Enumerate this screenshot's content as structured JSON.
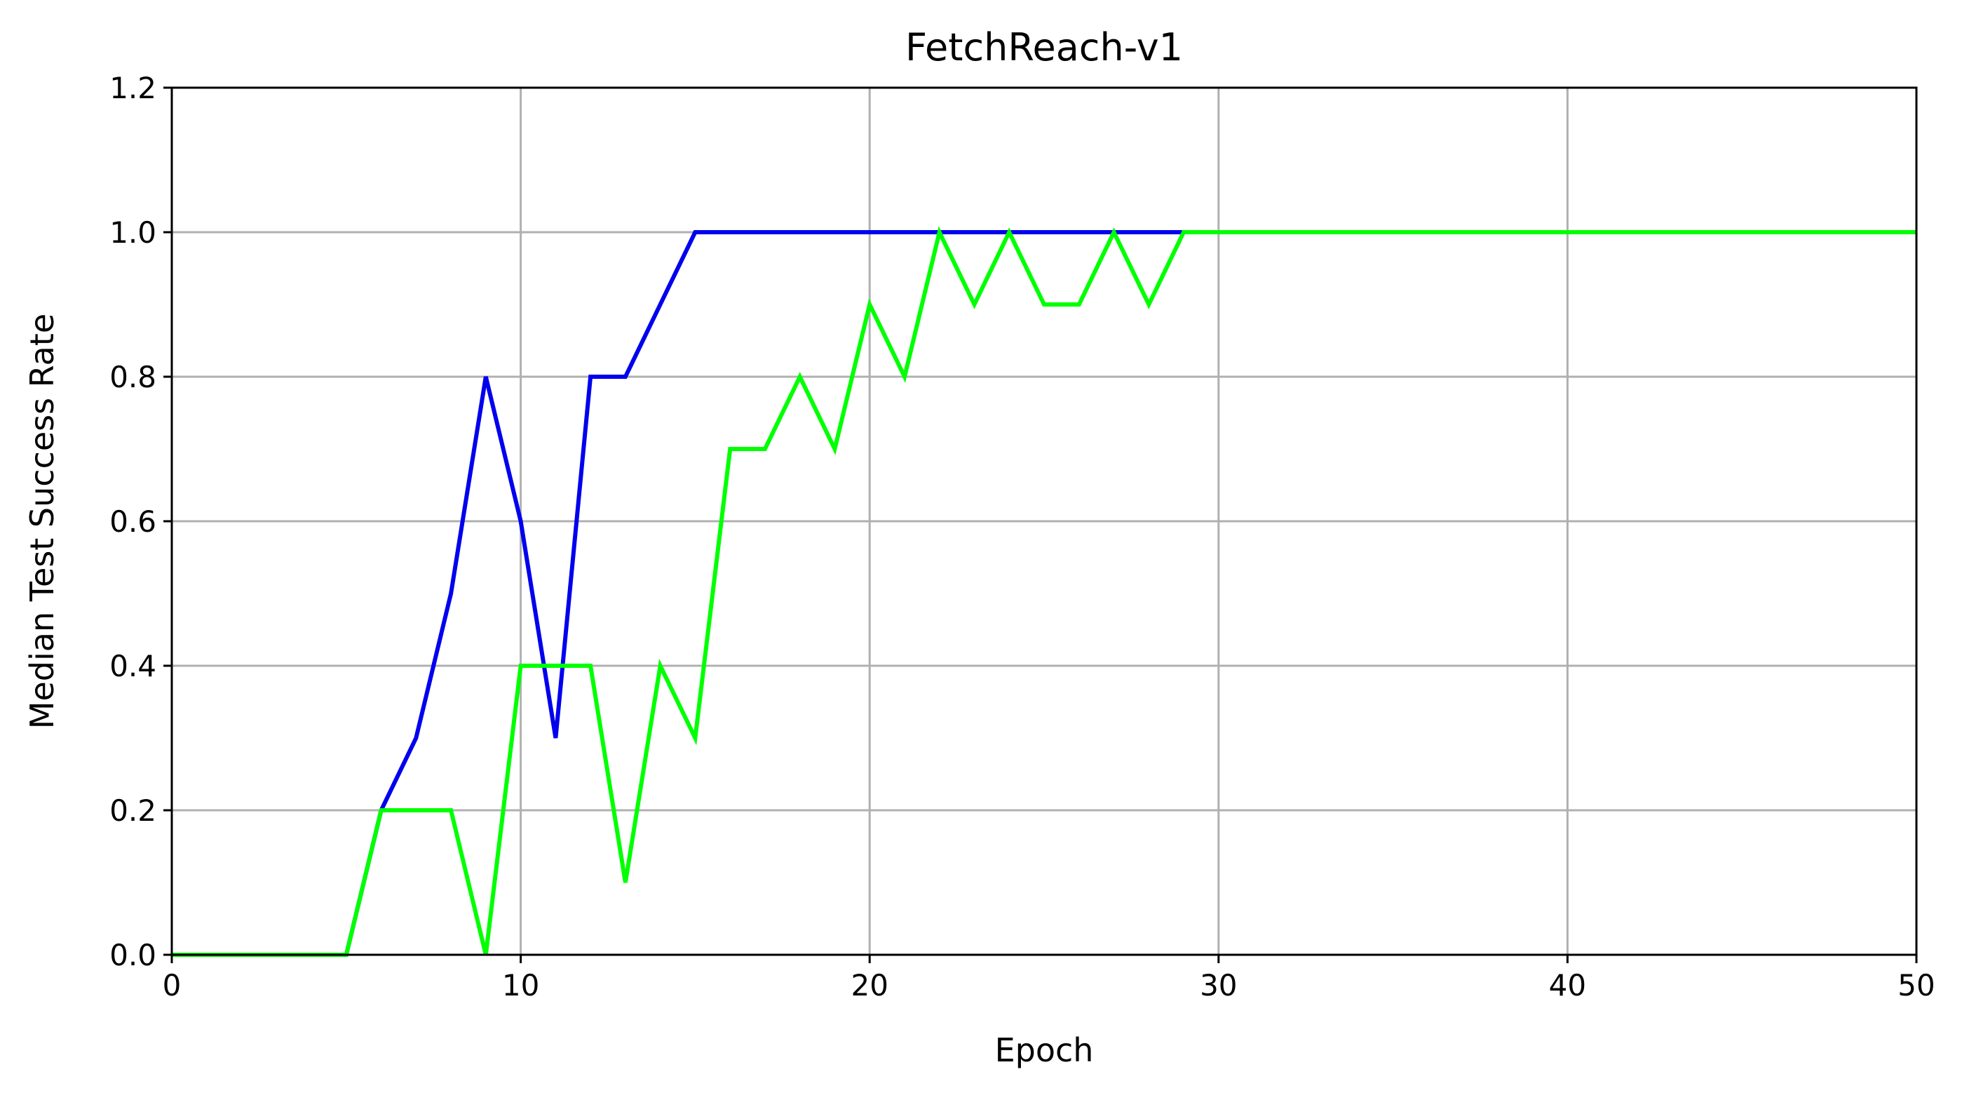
{
  "chart_data": {
    "type": "line",
    "title": "FetchReach-v1",
    "xlabel": "Epoch",
    "ylabel": "Median Test Success Rate",
    "xlim": [
      0,
      50
    ],
    "ylim": [
      0,
      1.2
    ],
    "xticks": [
      0,
      10,
      20,
      30,
      40,
      50
    ],
    "yticks": [
      0.0,
      0.2,
      0.4,
      0.6,
      0.8,
      1.0,
      1.2
    ],
    "xtick_labels": [
      "0",
      "10",
      "20",
      "30",
      "40",
      "50"
    ],
    "ytick_labels": [
      "0.0",
      "0.2",
      "0.4",
      "0.6",
      "0.8",
      "1.0",
      "1.2"
    ],
    "grid": true,
    "legend": "none",
    "series": [
      {
        "color": "#0000ee",
        "x": [
          0,
          1,
          2,
          3,
          4,
          5,
          6,
          7,
          8,
          9,
          10,
          11,
          12,
          13,
          14,
          15,
          16,
          17,
          18,
          19,
          20,
          21,
          22,
          23,
          24,
          25,
          26,
          27,
          28,
          29
        ],
        "y": [
          0,
          0,
          0,
          0,
          0,
          0,
          0.2,
          0.3,
          0.5,
          0.8,
          0.6,
          0.3,
          0.8,
          0.8,
          0.9,
          1.0,
          1.0,
          1.0,
          1.0,
          1.0,
          1.0,
          1.0,
          1.0,
          1.0,
          1.0,
          1.0,
          1.0,
          1.0,
          1.0,
          1.0
        ]
      },
      {
        "color": "#00ff00",
        "x": [
          0,
          1,
          2,
          3,
          4,
          5,
          6,
          7,
          8,
          9,
          10,
          11,
          12,
          13,
          14,
          15,
          16,
          17,
          18,
          19,
          20,
          21,
          22,
          23,
          24,
          25,
          26,
          27,
          28,
          29,
          30,
          31,
          32,
          33,
          34,
          35,
          36,
          37,
          38,
          39,
          40,
          41,
          42,
          43,
          44,
          45,
          46,
          47,
          48,
          49,
          50
        ],
        "y": [
          0,
          0,
          0,
          0,
          0,
          0,
          0.2,
          0.2,
          0.2,
          0.0,
          0.4,
          0.4,
          0.4,
          0.1,
          0.4,
          0.3,
          0.7,
          0.7,
          0.8,
          0.7,
          0.9,
          0.8,
          1.0,
          0.9,
          1.0,
          0.9,
          0.9,
          1.0,
          0.9,
          1.0,
          1.0,
          1.0,
          1.0,
          1.0,
          1.0,
          1.0,
          1.0,
          1.0,
          1.0,
          1.0,
          1.0,
          1.0,
          1.0,
          1.0,
          1.0,
          1.0,
          1.0,
          1.0,
          1.0,
          1.0,
          1.0
        ]
      }
    ]
  }
}
